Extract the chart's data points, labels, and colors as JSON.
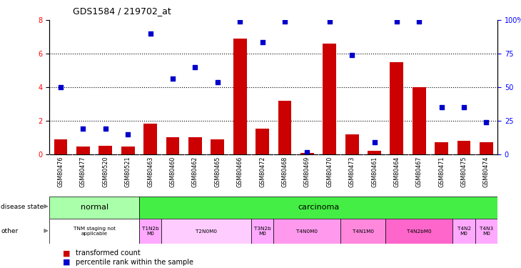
{
  "title": "GDS1584 / 219702_at",
  "samples": [
    "GSM80476",
    "GSM80477",
    "GSM80520",
    "GSM80521",
    "GSM80463",
    "GSM80460",
    "GSM80462",
    "GSM80465",
    "GSM80466",
    "GSM80472",
    "GSM80468",
    "GSM80469",
    "GSM80470",
    "GSM80473",
    "GSM80461",
    "GSM80464",
    "GSM80467",
    "GSM80471",
    "GSM80475",
    "GSM80474"
  ],
  "transformed_count": [
    0.9,
    0.45,
    0.5,
    0.45,
    1.8,
    1.0,
    1.0,
    0.9,
    6.9,
    1.5,
    3.2,
    0.05,
    6.6,
    1.2,
    0.2,
    5.5,
    4.0,
    0.7,
    0.8,
    0.7
  ],
  "percentile_rank": [
    4.0,
    1.5,
    1.5,
    1.2,
    7.2,
    4.5,
    5.2,
    4.3,
    7.9,
    6.7,
    7.9,
    0.1,
    7.9,
    5.9,
    0.7,
    7.9,
    7.9,
    2.8,
    2.8,
    1.9
  ],
  "bar_color": "#cc0000",
  "dot_color": "#0000cc",
  "ylim_left": [
    0,
    8
  ],
  "ylim_right": [
    0,
    100
  ],
  "yticks_left": [
    0,
    2,
    4,
    6,
    8
  ],
  "yticks_right": [
    0,
    25,
    50,
    75,
    100
  ],
  "dotted_lines": [
    2,
    4,
    6
  ],
  "normal_color": "#aaffaa",
  "carcinoma_color": "#44ee44",
  "tnm_groups": [
    {
      "label": "TNM staging not\napplicable",
      "start": 0,
      "end": 4,
      "color": "#ffffff"
    },
    {
      "label": "T1N2b\nM0",
      "start": 4,
      "end": 5,
      "color": "#ffaaff"
    },
    {
      "label": "T2N0M0",
      "start": 5,
      "end": 9,
      "color": "#ffccff"
    },
    {
      "label": "T3N2b\nM0",
      "start": 9,
      "end": 10,
      "color": "#ffaaff"
    },
    {
      "label": "T4N0M0",
      "start": 10,
      "end": 13,
      "color": "#ff99ee"
    },
    {
      "label": "T4N1M0",
      "start": 13,
      "end": 15,
      "color": "#ff88dd"
    },
    {
      "label": "T4N2bM0",
      "start": 15,
      "end": 18,
      "color": "#ff66cc"
    },
    {
      "label": "T4N2\nM0",
      "start": 18,
      "end": 19,
      "color": "#ffaaff"
    },
    {
      "label": "T4N3\nM0",
      "start": 19,
      "end": 20,
      "color": "#ffaaff"
    }
  ],
  "bar_width": 0.6,
  "tick_bg_color": "#cccccc",
  "n_samples": 20
}
